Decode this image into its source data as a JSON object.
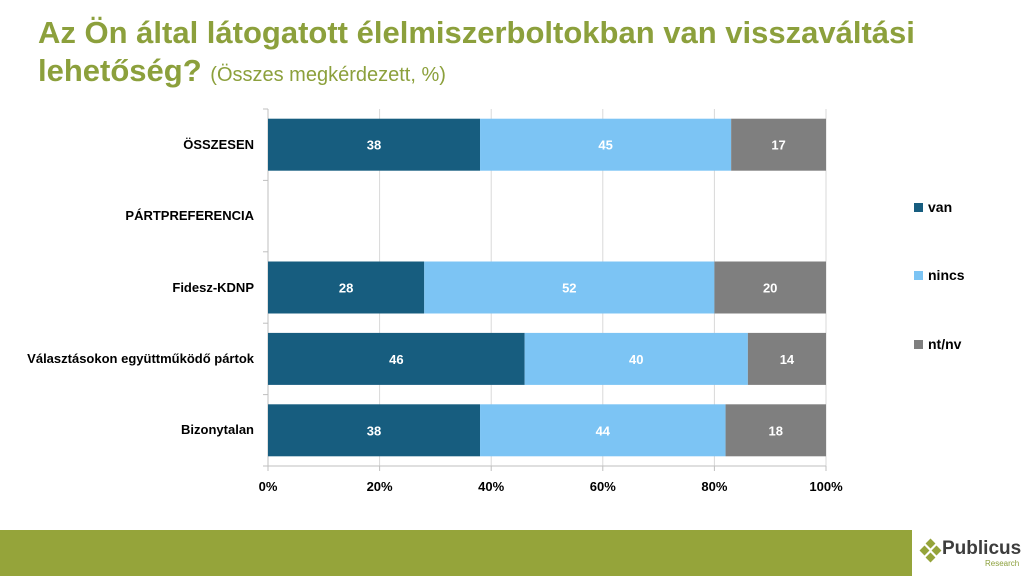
{
  "title": {
    "main": "Az Ön által látogatott élelmiszerboltokban van visszaváltási lehetőség?",
    "sub": "(Összes megkérdezett, %)"
  },
  "chart_data": {
    "type": "bar",
    "orientation": "horizontal",
    "stacked": "percent",
    "categories": [
      "ÖSSZESEN",
      "PÁRTPREFERENCIA",
      "Fidesz-KDNP",
      "Választásokon együttműködő pártok",
      "Bizonytalan"
    ],
    "series": [
      {
        "name": "van",
        "color": "#175d7f",
        "values": [
          38,
          null,
          28,
          46,
          38
        ]
      },
      {
        "name": "nincs",
        "color": "#7cc4f4",
        "values": [
          45,
          null,
          52,
          40,
          44
        ]
      },
      {
        "name": "nt/nv",
        "color": "#7f7f7f",
        "values": [
          17,
          null,
          20,
          14,
          18
        ]
      }
    ],
    "xlim": [
      0,
      100
    ],
    "xticks": [
      "0%",
      "20%",
      "40%",
      "60%",
      "80%",
      "100%"
    ],
    "grid": true,
    "legend_position": "right"
  },
  "brand": {
    "name": "Publicus",
    "tagline": "Research",
    "color": "#95a43a"
  }
}
